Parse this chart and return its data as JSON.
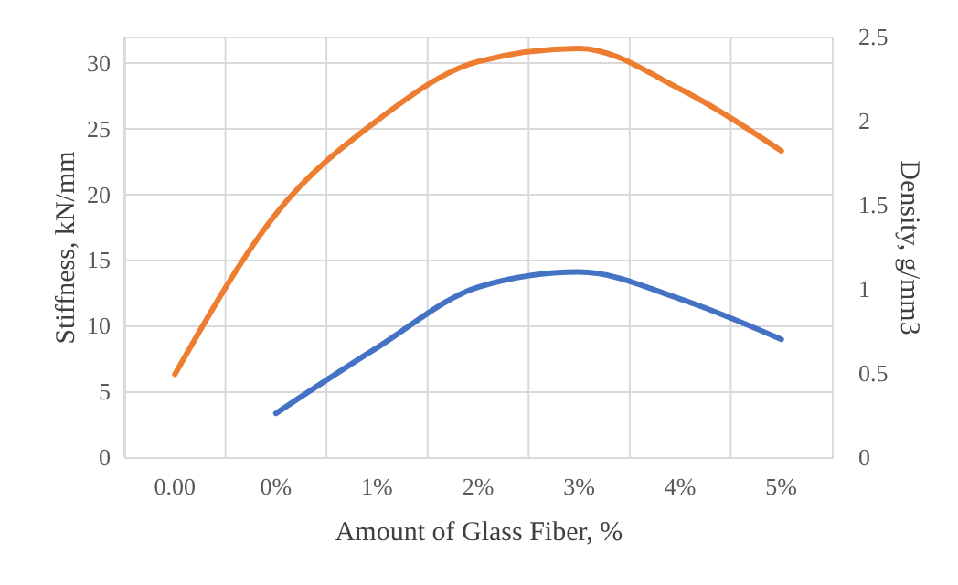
{
  "chart_data": {
    "type": "line",
    "xlabel": "Amount of Glass Fiber, %",
    "ylabel": "Stiffness, kN/mm",
    "y2label": "Density, g/mm3",
    "categories": [
      "0.00",
      "0%",
      "1%",
      "2%",
      "3%",
      "4%",
      "5%"
    ],
    "ylim": [
      0,
      32
    ],
    "yticks": [
      0,
      5,
      10,
      15,
      20,
      25,
      30
    ],
    "y2lim": [
      0,
      2.5
    ],
    "y2ticks": [
      0,
      0.5,
      1,
      1.5,
      2,
      2.5
    ],
    "grid": true,
    "marker": "none",
    "line_style": "solid",
    "series": [
      {
        "color": "#ed7d31",
        "values": [
          6.3,
          18.5,
          25.6,
          30.1,
          31.1,
          28.0,
          23.3
        ]
      },
      {
        "color": "#4472c4",
        "axis": "y2",
        "values": [
          null,
          0.26,
          0.65,
          1.01,
          1.1,
          0.94,
          0.7
        ]
      }
    ]
  }
}
